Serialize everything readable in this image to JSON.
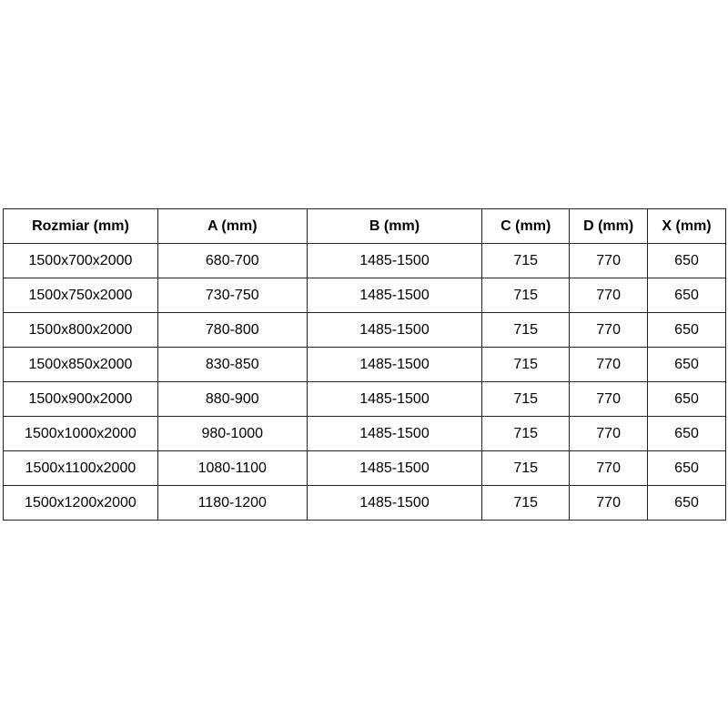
{
  "table": {
    "headers": [
      "Rozmiar (mm)",
      "A (mm)",
      "B (mm)",
      "C (mm)",
      "D (mm)",
      "X (mm)"
    ],
    "rows": [
      [
        "1500x700x2000",
        "680-700",
        "1485-1500",
        "715",
        "770",
        "650"
      ],
      [
        "1500x750x2000",
        "730-750",
        "1485-1500",
        "715",
        "770",
        "650"
      ],
      [
        "1500x800x2000",
        "780-800",
        "1485-1500",
        "715",
        "770",
        "650"
      ],
      [
        "1500x850x2000",
        "830-850",
        "1485-1500",
        "715",
        "770",
        "650"
      ],
      [
        "1500x900x2000",
        "880-900",
        "1485-1500",
        "715",
        "770",
        "650"
      ],
      [
        "1500x1000x2000",
        "980-1000",
        "1485-1500",
        "715",
        "770",
        "650"
      ],
      [
        "1500x1100x2000",
        "1080-1100",
        "1485-1500",
        "715",
        "770",
        "650"
      ],
      [
        "1500x1200x2000",
        "1180-1200",
        "1485-1500",
        "715",
        "770",
        "650"
      ]
    ]
  }
}
